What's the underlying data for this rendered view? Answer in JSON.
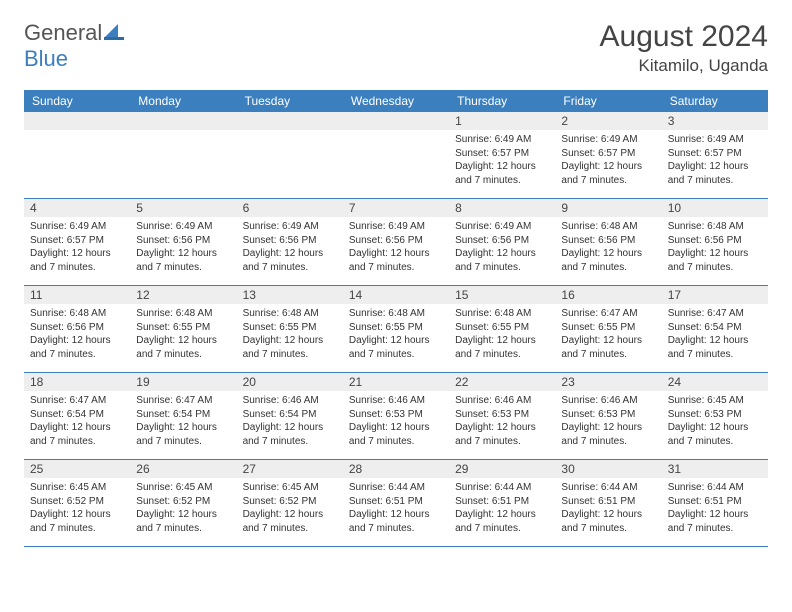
{
  "logo": {
    "text1": "General",
    "text2": "Blue"
  },
  "title": "August 2024",
  "location": "Kitamilo, Uganda",
  "colors": {
    "header_bg": "#3b7fbf",
    "header_text": "#ffffff",
    "daynum_bg": "#eeeeee",
    "border": "#3b7fbf",
    "text": "#333333",
    "title_text": "#444444"
  },
  "day_names": [
    "Sunday",
    "Monday",
    "Tuesday",
    "Wednesday",
    "Thursday",
    "Friday",
    "Saturday"
  ],
  "weeks": [
    [
      {
        "day": null
      },
      {
        "day": null
      },
      {
        "day": null
      },
      {
        "day": null
      },
      {
        "day": 1,
        "sunrise": "6:49 AM",
        "sunset": "6:57 PM",
        "daylight": "12 hours and 7 minutes."
      },
      {
        "day": 2,
        "sunrise": "6:49 AM",
        "sunset": "6:57 PM",
        "daylight": "12 hours and 7 minutes."
      },
      {
        "day": 3,
        "sunrise": "6:49 AM",
        "sunset": "6:57 PM",
        "daylight": "12 hours and 7 minutes."
      }
    ],
    [
      {
        "day": 4,
        "sunrise": "6:49 AM",
        "sunset": "6:57 PM",
        "daylight": "12 hours and 7 minutes."
      },
      {
        "day": 5,
        "sunrise": "6:49 AM",
        "sunset": "6:56 PM",
        "daylight": "12 hours and 7 minutes."
      },
      {
        "day": 6,
        "sunrise": "6:49 AM",
        "sunset": "6:56 PM",
        "daylight": "12 hours and 7 minutes."
      },
      {
        "day": 7,
        "sunrise": "6:49 AM",
        "sunset": "6:56 PM",
        "daylight": "12 hours and 7 minutes."
      },
      {
        "day": 8,
        "sunrise": "6:49 AM",
        "sunset": "6:56 PM",
        "daylight": "12 hours and 7 minutes."
      },
      {
        "day": 9,
        "sunrise": "6:48 AM",
        "sunset": "6:56 PM",
        "daylight": "12 hours and 7 minutes."
      },
      {
        "day": 10,
        "sunrise": "6:48 AM",
        "sunset": "6:56 PM",
        "daylight": "12 hours and 7 minutes."
      }
    ],
    [
      {
        "day": 11,
        "sunrise": "6:48 AM",
        "sunset": "6:56 PM",
        "daylight": "12 hours and 7 minutes."
      },
      {
        "day": 12,
        "sunrise": "6:48 AM",
        "sunset": "6:55 PM",
        "daylight": "12 hours and 7 minutes."
      },
      {
        "day": 13,
        "sunrise": "6:48 AM",
        "sunset": "6:55 PM",
        "daylight": "12 hours and 7 minutes."
      },
      {
        "day": 14,
        "sunrise": "6:48 AM",
        "sunset": "6:55 PM",
        "daylight": "12 hours and 7 minutes."
      },
      {
        "day": 15,
        "sunrise": "6:48 AM",
        "sunset": "6:55 PM",
        "daylight": "12 hours and 7 minutes."
      },
      {
        "day": 16,
        "sunrise": "6:47 AM",
        "sunset": "6:55 PM",
        "daylight": "12 hours and 7 minutes."
      },
      {
        "day": 17,
        "sunrise": "6:47 AM",
        "sunset": "6:54 PM",
        "daylight": "12 hours and 7 minutes."
      }
    ],
    [
      {
        "day": 18,
        "sunrise": "6:47 AM",
        "sunset": "6:54 PM",
        "daylight": "12 hours and 7 minutes."
      },
      {
        "day": 19,
        "sunrise": "6:47 AM",
        "sunset": "6:54 PM",
        "daylight": "12 hours and 7 minutes."
      },
      {
        "day": 20,
        "sunrise": "6:46 AM",
        "sunset": "6:54 PM",
        "daylight": "12 hours and 7 minutes."
      },
      {
        "day": 21,
        "sunrise": "6:46 AM",
        "sunset": "6:53 PM",
        "daylight": "12 hours and 7 minutes."
      },
      {
        "day": 22,
        "sunrise": "6:46 AM",
        "sunset": "6:53 PM",
        "daylight": "12 hours and 7 minutes."
      },
      {
        "day": 23,
        "sunrise": "6:46 AM",
        "sunset": "6:53 PM",
        "daylight": "12 hours and 7 minutes."
      },
      {
        "day": 24,
        "sunrise": "6:45 AM",
        "sunset": "6:53 PM",
        "daylight": "12 hours and 7 minutes."
      }
    ],
    [
      {
        "day": 25,
        "sunrise": "6:45 AM",
        "sunset": "6:52 PM",
        "daylight": "12 hours and 7 minutes."
      },
      {
        "day": 26,
        "sunrise": "6:45 AM",
        "sunset": "6:52 PM",
        "daylight": "12 hours and 7 minutes."
      },
      {
        "day": 27,
        "sunrise": "6:45 AM",
        "sunset": "6:52 PM",
        "daylight": "12 hours and 7 minutes."
      },
      {
        "day": 28,
        "sunrise": "6:44 AM",
        "sunset": "6:51 PM",
        "daylight": "12 hours and 7 minutes."
      },
      {
        "day": 29,
        "sunrise": "6:44 AM",
        "sunset": "6:51 PM",
        "daylight": "12 hours and 7 minutes."
      },
      {
        "day": 30,
        "sunrise": "6:44 AM",
        "sunset": "6:51 PM",
        "daylight": "12 hours and 7 minutes."
      },
      {
        "day": 31,
        "sunrise": "6:44 AM",
        "sunset": "6:51 PM",
        "daylight": "12 hours and 7 minutes."
      }
    ]
  ],
  "labels": {
    "sunrise": "Sunrise:",
    "sunset": "Sunset:",
    "daylight": "Daylight:"
  }
}
